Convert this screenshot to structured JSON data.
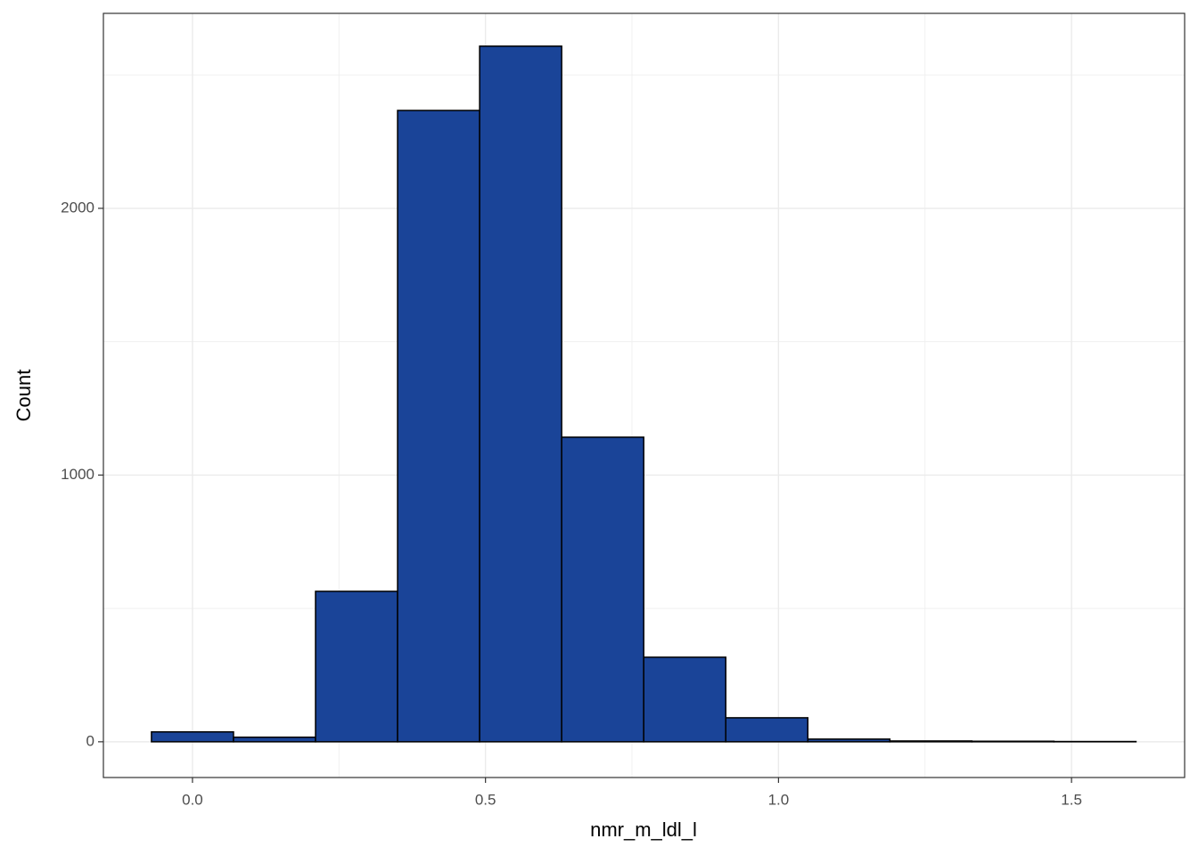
{
  "chart_data": {
    "type": "histogram",
    "x_label": "nmr_m_ldl_l",
    "y_label": "Count",
    "bins": [
      -0.07,
      0.07,
      0.21,
      0.35,
      0.49,
      0.63,
      0.77,
      0.91,
      1.05,
      1.19,
      1.33,
      1.47,
      1.61
    ],
    "values": [
      37,
      17,
      564,
      2367,
      2608,
      1142,
      317,
      90,
      10,
      3,
      2,
      1
    ],
    "color": "#1a4498",
    "edge_color": "#000000",
    "xlim": [
      -0.152,
      1.693
    ],
    "ylim": [
      -134,
      2731
    ],
    "xticks": [
      {
        "value": 0,
        "label": "0.0"
      },
      0.5,
      {
        "value": 1,
        "label": "1.0"
      },
      1.5
    ],
    "yticks": [
      0,
      1000,
      2000
    ],
    "x_minor_grid": [
      0.25,
      0.75,
      1.25
    ],
    "y_minor_grid": [
      500,
      1500,
      2500
    ],
    "grid": true
  }
}
